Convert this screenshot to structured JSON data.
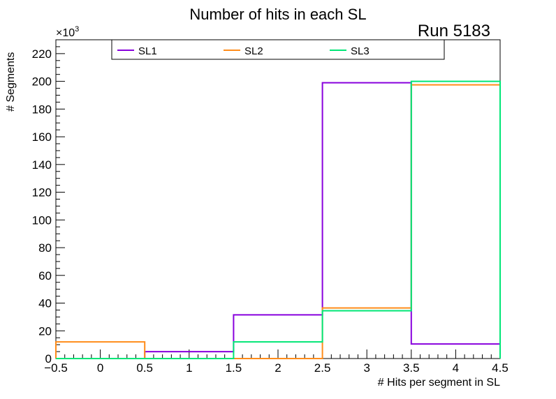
{
  "chart_data": {
    "type": "histogram-step",
    "title": "Number of hits in each SL",
    "annotation": "Run 5183",
    "xlabel": "# Hits per segment in SL",
    "ylabel": "# Segments",
    "y_multiplier_label": "×10",
    "y_multiplier_exponent": "3",
    "xlim": [
      -0.5,
      4.5
    ],
    "ylim": [
      0,
      230
    ],
    "bin_edges": [
      -0.5,
      0.5,
      1.5,
      2.5,
      3.5,
      4.5
    ],
    "x_ticks": [
      -0.5,
      0,
      0.5,
      1,
      1.5,
      2,
      2.5,
      3,
      3.5,
      4,
      4.5
    ],
    "x_tick_labels": [
      "−0.5",
      "0",
      "0.5",
      "1",
      "1.5",
      "2",
      "2.5",
      "3",
      "3.5",
      "4",
      "4.5"
    ],
    "y_ticks": [
      0,
      20,
      40,
      60,
      80,
      100,
      120,
      140,
      160,
      180,
      200,
      220
    ],
    "y_tick_labels": [
      "0",
      "20",
      "40",
      "60",
      "80",
      "100",
      "120",
      "140",
      "160",
      "180",
      "200",
      "220"
    ],
    "series": [
      {
        "name": "SL1",
        "color": "#8800dd",
        "values": [
          0,
          5,
          31.5,
          199,
          10.5
        ]
      },
      {
        "name": "SL2",
        "color": "#ff8c1a",
        "values": [
          12,
          0,
          0,
          36.5,
          197.5
        ]
      },
      {
        "name": "SL3",
        "color": "#00e676",
        "values": [
          0,
          0,
          12,
          34.5,
          200
        ]
      }
    ],
    "legend_position": "top"
  }
}
